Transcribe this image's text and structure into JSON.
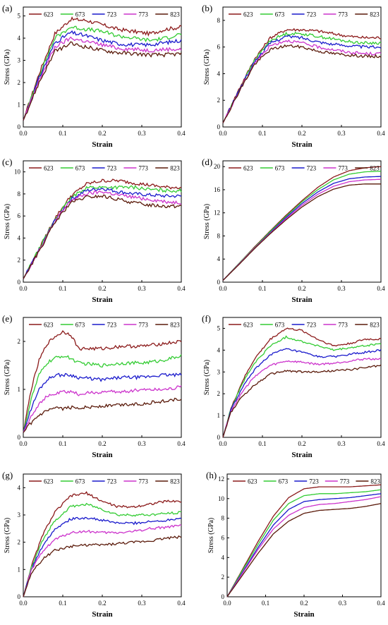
{
  "figure": {
    "series_colors": {
      "623": "#8b1a1a",
      "673": "#33cc33",
      "723": "#1a1acc",
      "773": "#cc33cc",
      "823": "#5a1a0a"
    }
  },
  "chart_data": [
    {
      "panel": "(a)",
      "type": "line",
      "xlabel": "Strain",
      "ylabel": "Stress (GPa)",
      "xlim": [
        0,
        0.4
      ],
      "ylim": [
        0,
        5.4
      ],
      "xticks": [
        "0.0",
        "0.1",
        "0.2",
        "0.3",
        "0.4"
      ],
      "yticks": [
        "0",
        "1",
        "2",
        "3",
        "4",
        "5"
      ],
      "x": [
        0,
        0.04,
        0.08,
        0.12,
        0.16,
        0.2,
        0.24,
        0.28,
        0.32,
        0.36,
        0.4
      ],
      "noise": 0.08,
      "series": [
        {
          "name": "623",
          "color": "#8b1a1a",
          "values": [
            0.3,
            2.4,
            4.2,
            4.85,
            4.8,
            4.6,
            4.4,
            4.3,
            4.2,
            4.4,
            4.5
          ]
        },
        {
          "name": "673",
          "color": "#33cc33",
          "values": [
            0.3,
            2.3,
            4.0,
            4.5,
            4.4,
            4.3,
            4.1,
            4.0,
            3.9,
            4.0,
            4.2
          ]
        },
        {
          "name": "723",
          "color": "#1a1acc",
          "values": [
            0.3,
            2.2,
            3.8,
            4.25,
            4.1,
            3.9,
            3.75,
            3.7,
            3.7,
            3.8,
            3.9
          ]
        },
        {
          "name": "773",
          "color": "#cc33cc",
          "values": [
            0.3,
            2.1,
            3.6,
            4.0,
            3.85,
            3.7,
            3.55,
            3.5,
            3.45,
            3.5,
            3.5
          ]
        },
        {
          "name": "823",
          "color": "#5a1a0a",
          "values": [
            0.3,
            2.0,
            3.4,
            3.75,
            3.6,
            3.45,
            3.35,
            3.3,
            3.25,
            3.25,
            3.3
          ]
        }
      ]
    },
    {
      "panel": "(b)",
      "type": "line",
      "xlabel": "Strain",
      "ylabel": "Stress (GPa)",
      "xlim": [
        0,
        0.4
      ],
      "ylim": [
        0,
        9
      ],
      "xticks": [
        "0.0",
        "0.1",
        "0.2",
        "0.3",
        "0.4"
      ],
      "yticks": [
        "0",
        "2",
        "4",
        "6",
        "8"
      ],
      "x": [
        0,
        0.04,
        0.08,
        0.12,
        0.16,
        0.2,
        0.24,
        0.28,
        0.32,
        0.36,
        0.4
      ],
      "noise": 0.06,
      "series": [
        {
          "name": "623",
          "color": "#8b1a1a",
          "values": [
            0.3,
            2.8,
            5.1,
            6.7,
            7.3,
            7.3,
            7.2,
            7.0,
            6.8,
            6.7,
            6.7
          ]
        },
        {
          "name": "673",
          "color": "#33cc33",
          "values": [
            0.3,
            2.7,
            5.0,
            6.5,
            7.0,
            7.0,
            6.8,
            6.6,
            6.4,
            6.3,
            6.3
          ]
        },
        {
          "name": "723",
          "color": "#1a1acc",
          "values": [
            0.3,
            2.7,
            4.9,
            6.3,
            6.8,
            6.7,
            6.4,
            6.2,
            6.1,
            6.0,
            6.0
          ]
        },
        {
          "name": "773",
          "color": "#cc33cc",
          "values": [
            0.3,
            2.6,
            4.8,
            6.1,
            6.5,
            6.3,
            6.0,
            5.8,
            5.6,
            5.5,
            5.5
          ]
        },
        {
          "name": "823",
          "color": "#5a1a0a",
          "values": [
            0.3,
            2.6,
            4.7,
            5.8,
            6.1,
            6.0,
            5.7,
            5.5,
            5.4,
            5.3,
            5.3
          ]
        }
      ]
    },
    {
      "panel": "(c)",
      "type": "line",
      "xlabel": "Strain",
      "ylabel": "Stress (GPa)",
      "xlim": [
        0,
        0.4
      ],
      "ylim": [
        0,
        11
      ],
      "xticks": [
        "0.0",
        "0.1",
        "0.2",
        "0.3",
        "0.4"
      ],
      "yticks": [
        "0",
        "2",
        "4",
        "6",
        "8",
        "10"
      ],
      "x": [
        0,
        0.04,
        0.08,
        0.12,
        0.16,
        0.2,
        0.24,
        0.28,
        0.32,
        0.36,
        0.4
      ],
      "noise": 0.07,
      "series": [
        {
          "name": "623",
          "color": "#8b1a1a",
          "values": [
            0.3,
            3.0,
            5.8,
            7.8,
            8.9,
            9.2,
            9.2,
            9.0,
            8.8,
            8.6,
            8.6
          ]
        },
        {
          "name": "673",
          "color": "#33cc33",
          "values": [
            0.3,
            3.0,
            5.7,
            7.6,
            8.6,
            8.6,
            8.6,
            8.6,
            8.4,
            8.3,
            8.3
          ]
        },
        {
          "name": "723",
          "color": "#1a1acc",
          "values": [
            0.3,
            2.9,
            5.6,
            7.5,
            8.3,
            8.5,
            8.2,
            8.0,
            7.9,
            7.8,
            7.8
          ]
        },
        {
          "name": "773",
          "color": "#cc33cc",
          "values": [
            0.3,
            2.9,
            5.5,
            7.4,
            8.0,
            8.2,
            7.9,
            7.7,
            7.5,
            7.3,
            7.2
          ]
        },
        {
          "name": "823",
          "color": "#5a1a0a",
          "values": [
            0.3,
            2.8,
            5.4,
            7.2,
            7.7,
            7.8,
            7.5,
            7.2,
            7.0,
            6.9,
            6.9
          ]
        }
      ]
    },
    {
      "panel": "(d)",
      "type": "line",
      "xlabel": "Strain",
      "ylabel": "Stress (GPa)",
      "xlim": [
        0,
        0.4
      ],
      "ylim": [
        0,
        21
      ],
      "xticks": [
        "0.0",
        "0.1",
        "0.2",
        "0.3",
        "0.4"
      ],
      "yticks": [
        "0",
        "4",
        "8",
        "12",
        "16",
        "20"
      ],
      "x": [
        0,
        0.04,
        0.08,
        0.12,
        0.16,
        0.2,
        0.24,
        0.28,
        0.32,
        0.36,
        0.4
      ],
      "noise": 0,
      "series": [
        {
          "name": "623",
          "color": "#8b1a1a",
          "values": [
            0.3,
            3.2,
            6.1,
            8.9,
            11.6,
            14.1,
            16.4,
            18.2,
            19.3,
            19.8,
            20.0
          ]
        },
        {
          "name": "673",
          "color": "#33cc33",
          "values": [
            0.3,
            3.2,
            6.0,
            8.8,
            11.4,
            13.9,
            16.0,
            17.7,
            18.7,
            19.1,
            19.2
          ]
        },
        {
          "name": "723",
          "color": "#1a1acc",
          "values": [
            0.3,
            3.1,
            5.9,
            8.6,
            11.2,
            13.6,
            15.6,
            17.1,
            17.9,
            18.2,
            18.3
          ]
        },
        {
          "name": "773",
          "color": "#cc33cc",
          "values": [
            0.3,
            3.1,
            5.9,
            8.5,
            11.0,
            13.3,
            15.2,
            16.6,
            17.4,
            17.7,
            17.8
          ]
        },
        {
          "name": "823",
          "color": "#5a1a0a",
          "values": [
            0.3,
            3.0,
            5.8,
            8.4,
            10.8,
            13.0,
            14.8,
            16.1,
            16.8,
            17.0,
            17.0
          ]
        }
      ]
    },
    {
      "panel": "(e)",
      "type": "line",
      "xlabel": "Strain",
      "ylabel": "Stress (GPa)",
      "xlim": [
        0,
        0.4
      ],
      "ylim": [
        0,
        2.5
      ],
      "xticks": [
        "0.0",
        "0.1",
        "0.2",
        "0.3",
        "0.4"
      ],
      "yticks": [
        "0",
        "1",
        "2"
      ],
      "x": [
        0,
        0.02,
        0.04,
        0.06,
        0.08,
        0.1,
        0.12,
        0.14,
        0.2,
        0.25,
        0.3,
        0.35,
        0.4
      ],
      "noise": 0.07,
      "series": [
        {
          "name": "623",
          "color": "#8b1a1a",
          "values": [
            0.1,
            1.0,
            1.6,
            1.95,
            2.1,
            2.2,
            2.15,
            1.85,
            1.85,
            1.9,
            1.9,
            1.95,
            2.0
          ]
        },
        {
          "name": "673",
          "color": "#33cc33",
          "values": [
            0.1,
            0.8,
            1.3,
            1.55,
            1.65,
            1.7,
            1.65,
            1.55,
            1.5,
            1.55,
            1.55,
            1.6,
            1.7
          ]
        },
        {
          "name": "723",
          "color": "#1a1acc",
          "values": [
            0.1,
            0.6,
            1.0,
            1.2,
            1.3,
            1.3,
            1.3,
            1.25,
            1.2,
            1.25,
            1.25,
            1.3,
            1.3
          ]
        },
        {
          "name": "773",
          "color": "#cc33cc",
          "values": [
            0.1,
            0.45,
            0.7,
            0.85,
            0.9,
            0.95,
            0.95,
            0.9,
            0.95,
            0.95,
            1.0,
            1.0,
            1.05
          ]
        },
        {
          "name": "823",
          "color": "#5a1a0a",
          "values": [
            0.1,
            0.3,
            0.45,
            0.55,
            0.6,
            0.6,
            0.62,
            0.62,
            0.65,
            0.68,
            0.7,
            0.75,
            0.8
          ]
        }
      ]
    },
    {
      "panel": "(f)",
      "type": "line",
      "xlabel": "Strain",
      "ylabel": "Stress (GPa)",
      "xlim": [
        0,
        0.4
      ],
      "ylim": [
        0,
        5.5
      ],
      "xticks": [
        "0.0",
        "0.1",
        "0.2",
        "0.3",
        "0.4"
      ],
      "yticks": [
        "0",
        "1",
        "2",
        "3",
        "4",
        "5"
      ],
      "x": [
        0,
        0.02,
        0.05,
        0.08,
        0.12,
        0.16,
        0.2,
        0.24,
        0.28,
        0.32,
        0.36,
        0.4
      ],
      "noise": 0.04,
      "series": [
        {
          "name": "623",
          "color": "#8b1a1a",
          "values": [
            0,
            1.3,
            2.6,
            3.6,
            4.5,
            5.0,
            4.9,
            4.5,
            4.2,
            4.3,
            4.5,
            4.5
          ]
        },
        {
          "name": "673",
          "color": "#33cc33",
          "values": [
            0,
            1.3,
            2.5,
            3.4,
            4.2,
            4.6,
            4.4,
            4.2,
            4.0,
            4.1,
            4.2,
            4.3
          ]
        },
        {
          "name": "723",
          "color": "#1a1acc",
          "values": [
            0,
            1.25,
            2.3,
            3.1,
            3.8,
            4.05,
            3.9,
            3.7,
            3.7,
            3.8,
            3.9,
            4.0
          ]
        },
        {
          "name": "773",
          "color": "#cc33cc",
          "values": [
            0,
            1.2,
            2.1,
            2.8,
            3.3,
            3.5,
            3.45,
            3.35,
            3.4,
            3.5,
            3.6,
            3.6
          ]
        },
        {
          "name": "823",
          "color": "#5a1a0a",
          "values": [
            0,
            1.15,
            1.9,
            2.4,
            2.9,
            3.05,
            3.0,
            3.0,
            3.05,
            3.1,
            3.2,
            3.3
          ]
        }
      ]
    },
    {
      "panel": "(g)",
      "type": "line",
      "xlabel": "Strain",
      "ylabel": "Stress (GPa)",
      "xlim": [
        0,
        0.4
      ],
      "ylim": [
        0,
        4.5
      ],
      "xticks": [
        "0.0",
        "0.1",
        "0.2",
        "0.3",
        "0.4"
      ],
      "yticks": [
        "0",
        "1",
        "2",
        "3",
        "4"
      ],
      "x": [
        0,
        0.02,
        0.05,
        0.08,
        0.12,
        0.16,
        0.2,
        0.24,
        0.28,
        0.32,
        0.36,
        0.4
      ],
      "noise": 0.05,
      "series": [
        {
          "name": "623",
          "color": "#8b1a1a",
          "values": [
            0,
            1.1,
            2.3,
            3.1,
            3.7,
            3.8,
            3.5,
            3.3,
            3.3,
            3.4,
            3.5,
            3.5
          ]
        },
        {
          "name": "673",
          "color": "#33cc33",
          "values": [
            0,
            1.05,
            2.1,
            2.8,
            3.3,
            3.4,
            3.2,
            3.0,
            3.0,
            3.0,
            3.05,
            3.1
          ]
        },
        {
          "name": "723",
          "color": "#1a1acc",
          "values": [
            0,
            1.0,
            1.9,
            2.5,
            2.85,
            2.9,
            2.8,
            2.7,
            2.7,
            2.75,
            2.8,
            2.9
          ]
        },
        {
          "name": "773",
          "color": "#cc33cc",
          "values": [
            0,
            0.95,
            1.7,
            2.1,
            2.35,
            2.4,
            2.35,
            2.35,
            2.4,
            2.5,
            2.55,
            2.6
          ]
        },
        {
          "name": "823",
          "color": "#5a1a0a",
          "values": [
            0,
            0.85,
            1.4,
            1.7,
            1.85,
            1.9,
            1.9,
            1.95,
            2.0,
            2.05,
            2.15,
            2.2
          ]
        }
      ]
    },
    {
      "panel": "(h)",
      "type": "line",
      "xlabel": "Strain",
      "ylabel": "Stress (GPa)",
      "xlim": [
        0,
        0.4
      ],
      "ylim": [
        0,
        12.5
      ],
      "xticks": [
        "0.0",
        "0.1",
        "0.2",
        "0.3",
        "0.4"
      ],
      "yticks": [
        "0",
        "2",
        "4",
        "6",
        "8",
        "10",
        "12"
      ],
      "x": [
        0,
        0.04,
        0.08,
        0.12,
        0.16,
        0.2,
        0.24,
        0.28,
        0.32,
        0.36,
        0.4
      ],
      "noise": 0,
      "series": [
        {
          "name": "623",
          "color": "#8b1a1a",
          "values": [
            0,
            2.8,
            5.6,
            8.2,
            10.1,
            11.0,
            11.2,
            11.2,
            11.2,
            11.3,
            11.4
          ]
        },
        {
          "name": "673",
          "color": "#33cc33",
          "values": [
            0,
            2.7,
            5.3,
            7.8,
            9.5,
            10.3,
            10.5,
            10.5,
            10.6,
            10.7,
            10.9
          ]
        },
        {
          "name": "723",
          "color": "#1a1acc",
          "values": [
            0,
            2.5,
            5.0,
            7.3,
            8.9,
            9.7,
            9.9,
            10.0,
            10.1,
            10.3,
            10.5
          ]
        },
        {
          "name": "773",
          "color": "#cc33cc",
          "values": [
            0,
            2.4,
            4.8,
            6.9,
            8.3,
            9.1,
            9.4,
            9.5,
            9.7,
            9.9,
            10.2
          ]
        },
        {
          "name": "823",
          "color": "#5a1a0a",
          "values": [
            0,
            2.2,
            4.4,
            6.4,
            7.7,
            8.5,
            8.8,
            8.9,
            9.0,
            9.2,
            9.5
          ]
        }
      ]
    }
  ]
}
